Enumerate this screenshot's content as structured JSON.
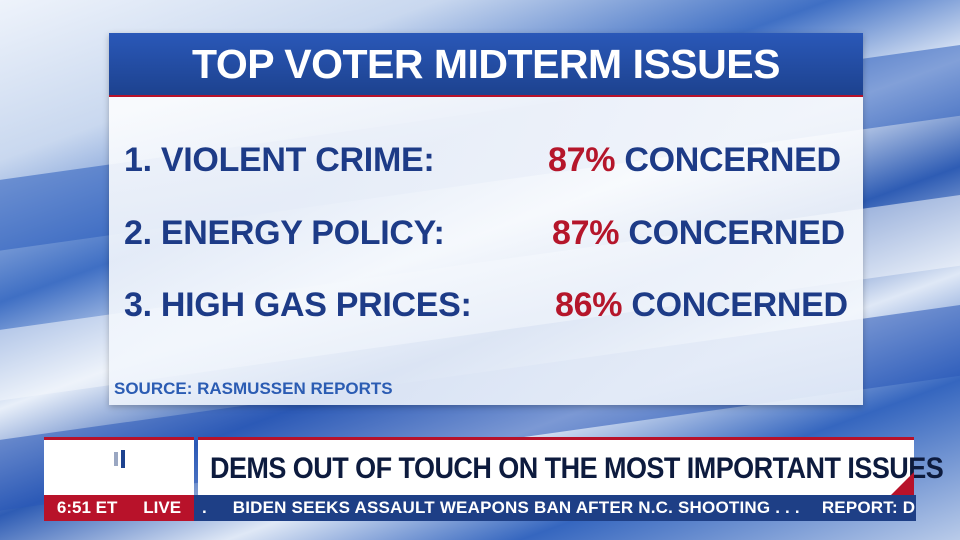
{
  "card": {
    "title": "TOP VOTER MIDTERM ISSUES",
    "issues": [
      {
        "label": "1. VIOLENT CRIME:",
        "percent": "87%",
        "suffix": "CONCERNED"
      },
      {
        "label": "2. ENERGY POLICY:",
        "percent": "87%",
        "suffix": "CONCERNED"
      },
      {
        "label": "3. HIGH GAS PRICES:",
        "percent": "86%",
        "suffix": "CONCERNED"
      }
    ],
    "source": "SOURCE: RASMUSSEN REPORTS"
  },
  "lower_third": {
    "headline": "DEMS OUT OF TOUCH ON THE MOST IMPORTANT ISSUES",
    "time": "6:51 ET",
    "live": "LIVE",
    "ticker_lead": ".",
    "ticker_items": [
      "BIDEN SEEKS ASSAULT WEAPONS BAN AFTER N.C. SHOOTING . . .",
      "REPORT: D.C. A"
    ]
  },
  "colors": {
    "header_blue": "#1d428f",
    "text_blue": "#1d3b87",
    "accent_red": "#b5162b"
  },
  "icons": {
    "logo": "network-logo-icon"
  }
}
